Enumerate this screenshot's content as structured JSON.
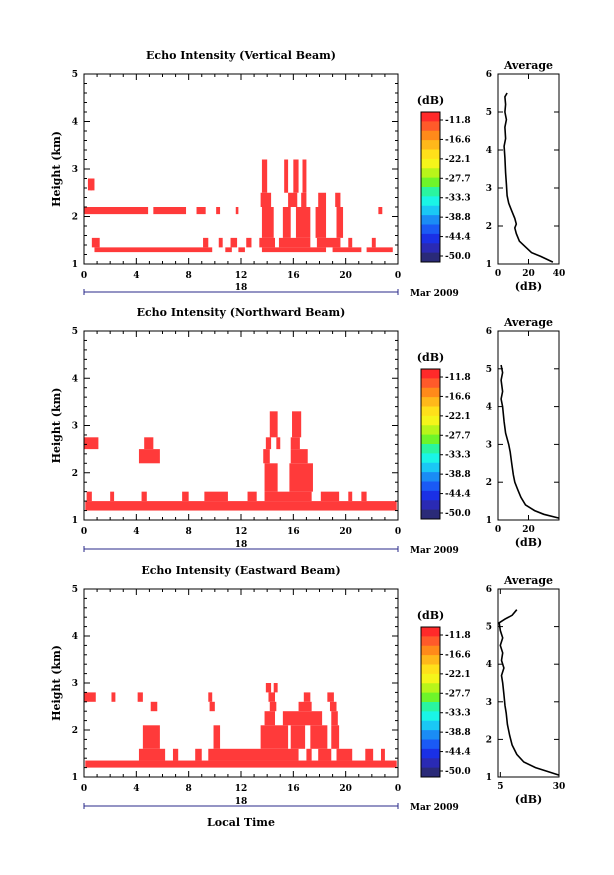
{
  "colorbar": {
    "unit": "(dB)",
    "ticks": [
      "-11.8",
      "-16.6",
      "-22.1",
      "-27.7",
      "-33.3",
      "-38.8",
      "-44.4",
      "-50.0"
    ],
    "colors": [
      "#ff2a2a",
      "#ff5a2a",
      "#ff8a1a",
      "#ffb81a",
      "#ffe01a",
      "#f5f51a",
      "#b8f51a",
      "#6ef52a",
      "#2af5a0",
      "#1af5e6",
      "#1ac8f5",
      "#1a8cf5",
      "#1a5af5",
      "#1a30e6",
      "#2a2ab4",
      "#2a2a78"
    ]
  },
  "heatmap_color": "#ff3a3a",
  "x_axis": {
    "ticks": [
      "0",
      "4",
      "8",
      "12",
      "16",
      "20",
      "0"
    ],
    "date_label": "18",
    "month_label": "Mar 2009",
    "xlabel": "Local Time"
  },
  "avg_title": "Average",
  "avg_xlabel": "(dB)",
  "chart_data": [
    {
      "type": "heatmap",
      "title": "Echo Intensity (Vertical Beam)",
      "ylabel": "Height (km)",
      "ylim": [
        1,
        5
      ],
      "yticks": [
        "1",
        "2",
        "3",
        "4",
        "5"
      ],
      "xlim": [
        0,
        24
      ],
      "xlabel": "",
      "echo_segments": [
        {
          "height_km": [
            1.25,
            1.35
          ],
          "hours": [
            [
              0.8,
              9.8
            ],
            [
              10.8,
              11.3
            ],
            [
              11.8,
              12.3
            ],
            [
              13.6,
              18.5
            ],
            [
              19.0,
              21.2
            ],
            [
              21.6,
              23.6
            ]
          ]
        },
        {
          "height_km": [
            1.35,
            1.55
          ],
          "hours": [
            [
              0.6,
              1.2
            ],
            [
              9.1,
              9.5
            ],
            [
              10.3,
              10.6
            ],
            [
              11.2,
              11.7
            ],
            [
              12.4,
              12.8
            ],
            [
              13.4,
              14.6
            ],
            [
              14.9,
              17.3
            ],
            [
              17.8,
              19.6
            ],
            [
              20.2,
              20.5
            ],
            [
              22.0,
              22.3
            ]
          ]
        },
        {
          "height_km": [
            1.55,
            2.2
          ],
          "hours": [
            [
              13.6,
              14.5
            ],
            [
              15.2,
              15.8
            ],
            [
              16.2,
              17.3
            ],
            [
              17.7,
              18.5
            ],
            [
              19.3,
              19.8
            ]
          ]
        },
        {
          "height_km": [
            2.2,
            2.5
          ],
          "hours": [
            [
              13.5,
              14.3
            ],
            [
              15.6,
              16.3
            ],
            [
              16.6,
              17.0
            ],
            [
              17.9,
              18.5
            ],
            [
              19.2,
              19.6
            ]
          ]
        },
        {
          "height_km": [
            2.5,
            3.2
          ],
          "hours": [
            [
              13.6,
              14.0
            ],
            [
              15.3,
              15.6
            ],
            [
              16.0,
              16.4
            ],
            [
              16.7,
              17.0
            ]
          ]
        },
        {
          "height_km": [
            2.05,
            2.2
          ],
          "hours": [
            [
              0.0,
              4.9
            ],
            [
              5.3,
              7.8
            ],
            [
              8.6,
              9.3
            ],
            [
              10.1,
              10.4
            ],
            [
              11.6,
              11.8
            ],
            [
              22.5,
              22.8
            ]
          ]
        },
        {
          "height_km": [
            2.55,
            2.8
          ],
          "hours": [
            [
              0.3,
              0.6
            ],
            [
              0.5,
              0.8
            ]
          ]
        }
      ],
      "average_profile": {
        "xlim": [
          0,
          40
        ],
        "xticks": [
          "0",
          "20",
          "40"
        ],
        "points": [
          [
            36,
            1.05
          ],
          [
            28,
            1.2
          ],
          [
            22,
            1.3
          ],
          [
            18,
            1.45
          ],
          [
            14,
            1.6
          ],
          [
            12,
            1.8
          ],
          [
            11,
            1.95
          ],
          [
            12,
            2.05
          ],
          [
            11,
            2.2
          ],
          [
            9,
            2.4
          ],
          [
            7,
            2.6
          ],
          [
            6,
            2.8
          ],
          [
            5.5,
            3.1
          ],
          [
            5,
            3.4
          ],
          [
            4.5,
            3.8
          ],
          [
            4,
            4.1
          ],
          [
            5,
            4.3
          ],
          [
            4.5,
            4.6
          ],
          [
            5.5,
            4.8
          ],
          [
            4.5,
            5.0
          ],
          [
            5,
            5.2
          ],
          [
            4.5,
            5.4
          ],
          [
            6,
            5.5
          ]
        ]
      }
    },
    {
      "type": "heatmap",
      "title": "Echo Intensity (Northward Beam)",
      "ylabel": "Height (km)",
      "ylim": [
        1,
        5
      ],
      "yticks": [
        "1",
        "2",
        "3",
        "4",
        "5"
      ],
      "xlim": [
        0,
        24
      ],
      "xlabel": "",
      "echo_segments": [
        {
          "height_km": [
            1.2,
            1.4
          ],
          "hours": [
            [
              0.1,
              23.9
            ]
          ]
        },
        {
          "height_km": [
            1.4,
            1.6
          ],
          "hours": [
            [
              0.2,
              0.6
            ],
            [
              2.0,
              2.3
            ],
            [
              4.4,
              4.8
            ],
            [
              7.5,
              8.0
            ],
            [
              9.2,
              11.0
            ],
            [
              12.5,
              13.2
            ],
            [
              13.8,
              17.4
            ],
            [
              18.1,
              19.5
            ],
            [
              20.2,
              20.5
            ],
            [
              21.2,
              21.6
            ]
          ]
        },
        {
          "height_km": [
            1.6,
            2.2
          ],
          "hours": [
            [
              13.8,
              14.8
            ],
            [
              15.7,
              17.5
            ]
          ]
        },
        {
          "height_km": [
            2.2,
            2.5
          ],
          "hours": [
            [
              4.2,
              5.8
            ],
            [
              13.7,
              14.2
            ],
            [
              15.8,
              17.1
            ]
          ]
        },
        {
          "height_km": [
            2.5,
            2.75
          ],
          "hours": [
            [
              0.0,
              1.1
            ],
            [
              4.6,
              5.3
            ],
            [
              13.9,
              14.3
            ],
            [
              14.7,
              15.0
            ],
            [
              15.8,
              16.5
            ]
          ]
        },
        {
          "height_km": [
            2.75,
            3.3
          ],
          "hours": [
            [
              14.2,
              14.8
            ],
            [
              15.9,
              16.6
            ]
          ]
        }
      ],
      "average_profile": {
        "xlim": [
          0,
          40
        ],
        "xticks": [
          "0",
          "20"
        ],
        "points": [
          [
            40,
            1.05
          ],
          [
            30,
            1.15
          ],
          [
            24,
            1.25
          ],
          [
            18,
            1.4
          ],
          [
            15,
            1.6
          ],
          [
            13,
            1.8
          ],
          [
            11,
            2.0
          ],
          [
            10,
            2.2
          ],
          [
            9,
            2.5
          ],
          [
            8,
            2.8
          ],
          [
            7,
            3.0
          ],
          [
            5,
            3.3
          ],
          [
            4,
            3.6
          ],
          [
            3,
            4.0
          ],
          [
            2,
            4.2
          ],
          [
            3,
            4.4
          ],
          [
            2,
            4.7
          ],
          [
            3,
            4.9
          ],
          [
            2,
            5.1
          ]
        ]
      }
    },
    {
      "type": "heatmap",
      "title": "Echo Intensity (Eastward Beam)",
      "ylabel": "Height (km)",
      "ylim": [
        1,
        5
      ],
      "yticks": [
        "1",
        "2",
        "3",
        "4",
        "5"
      ],
      "xlim": [
        0,
        24
      ],
      "xlabel": "Local Time",
      "echo_segments": [
        {
          "height_km": [
            1.2,
            1.35
          ],
          "hours": [
            [
              0.1,
              23.9
            ]
          ]
        },
        {
          "height_km": [
            1.35,
            1.6
          ],
          "hours": [
            [
              4.2,
              6.2
            ],
            [
              6.8,
              7.2
            ],
            [
              8.5,
              9.0
            ],
            [
              9.5,
              16.4
            ],
            [
              17.0,
              17.4
            ],
            [
              17.9,
              18.9
            ],
            [
              19.3,
              20.5
            ],
            [
              21.5,
              22.1
            ],
            [
              22.7,
              23.0
            ]
          ]
        },
        {
          "height_km": [
            1.6,
            2.1
          ],
          "hours": [
            [
              4.5,
              5.8
            ],
            [
              9.9,
              10.4
            ],
            [
              13.5,
              15.6
            ],
            [
              15.8,
              16.9
            ],
            [
              17.3,
              18.6
            ],
            [
              18.9,
              19.5
            ]
          ]
        },
        {
          "height_km": [
            2.1,
            2.4
          ],
          "hours": [
            [
              13.8,
              14.6
            ],
            [
              15.2,
              18.2
            ],
            [
              18.9,
              19.4
            ]
          ]
        },
        {
          "height_km": [
            2.4,
            2.6
          ],
          "hours": [
            [
              5.1,
              5.6
            ],
            [
              9.6,
              10.0
            ],
            [
              14.2,
              14.7
            ],
            [
              16.4,
              17.4
            ],
            [
              18.8,
              19.3
            ]
          ]
        },
        {
          "height_km": [
            2.6,
            2.8
          ],
          "hours": [
            [
              0.0,
              0.9
            ],
            [
              2.1,
              2.4
            ],
            [
              4.1,
              4.5
            ],
            [
              9.5,
              9.8
            ],
            [
              14.1,
              14.6
            ],
            [
              16.8,
              17.3
            ],
            [
              18.6,
              19.1
            ]
          ]
        },
        {
          "height_km": [
            2.8,
            3.0
          ],
          "hours": [
            [
              13.9,
              14.3
            ],
            [
              14.5,
              14.8
            ]
          ]
        }
      ],
      "average_profile": {
        "xlim": [
          4,
          30
        ],
        "xticks": [
          "5",
          "30"
        ],
        "points": [
          [
            30,
            1.05
          ],
          [
            25,
            1.15
          ],
          [
            20,
            1.25
          ],
          [
            15,
            1.4
          ],
          [
            12,
            1.6
          ],
          [
            10,
            1.85
          ],
          [
            9,
            2.1
          ],
          [
            8,
            2.4
          ],
          [
            7.5,
            2.7
          ],
          [
            7,
            2.9
          ],
          [
            6.5,
            3.2
          ],
          [
            6,
            3.5
          ],
          [
            5.5,
            3.7
          ],
          [
            6.5,
            3.9
          ],
          [
            5.5,
            4.1
          ],
          [
            6,
            4.3
          ],
          [
            5,
            4.5
          ],
          [
            6,
            4.7
          ],
          [
            5,
            4.9
          ],
          [
            4.5,
            5.1
          ],
          [
            7,
            5.2
          ],
          [
            10,
            5.3
          ],
          [
            12,
            5.45
          ]
        ]
      }
    }
  ]
}
